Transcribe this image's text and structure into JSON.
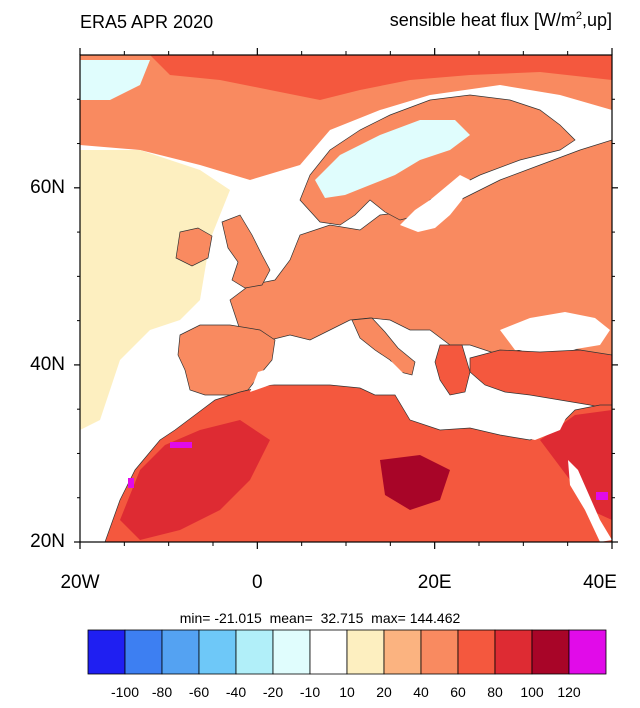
{
  "map": {
    "title_left": "ERA5 APR 2020",
    "title_right_main": "sensible heat flux [W/m",
    "title_right_sup": "2",
    "title_right_tail": ",up]",
    "stats": {
      "min_label": "min=",
      "min": "-21.015",
      "mean_label": "mean=",
      "mean": "32.715",
      "max_label": "max=",
      "max": "144.462"
    },
    "lat_ticks": [
      {
        "label": "60N",
        "value": 60
      },
      {
        "label": "40N",
        "value": 40
      },
      {
        "label": "20N",
        "value": 20
      }
    ],
    "lon_ticks": [
      {
        "label": "20W",
        "value": -20
      },
      {
        "label": "0",
        "value": 0
      },
      {
        "label": "20E",
        "value": 20
      },
      {
        "label": "40E",
        "value": 40
      }
    ],
    "extent": {
      "lon_min": -20,
      "lon_max": 40,
      "lat_min": 20,
      "lat_max": 75
    },
    "colorbar": {
      "colors": [
        "#1f1ff2",
        "#3d7ff2",
        "#54a2f2",
        "#6ec8f8",
        "#b1eff9",
        "#e0fdfd",
        "#ffffff",
        "#fdefc0",
        "#fbb380",
        "#f98a60",
        "#f4583e",
        "#de2b33",
        "#a80528",
        "#e10be9"
      ],
      "labels": [
        "-100",
        "-80",
        "-60",
        "-40",
        "-20",
        "-10",
        "10",
        "20",
        "40",
        "60",
        "80",
        "100",
        "120"
      ]
    },
    "colors": {
      "land_base": "#fbb380",
      "ocean_low": "#fde6d0",
      "warm": "#f98a60",
      "hot": "#f4583e",
      "very_hot": "#de2b33",
      "extreme": "#a80528",
      "cool": "#e0fdfd",
      "light": "#fdefc0",
      "white": "#ffffff",
      "peak": "#e10be9"
    }
  }
}
